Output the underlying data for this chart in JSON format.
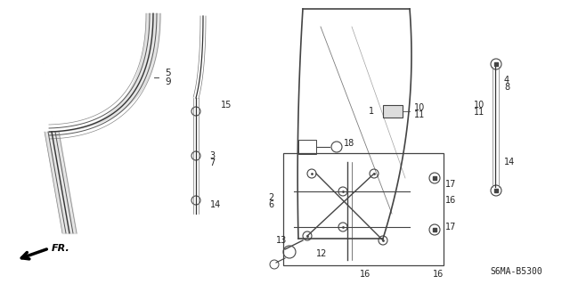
{
  "bg_color": "#ffffff",
  "diagram_code": "S6MA-B5300",
  "fr_label": "FR.",
  "line_color": "#444444",
  "text_color": "#222222"
}
